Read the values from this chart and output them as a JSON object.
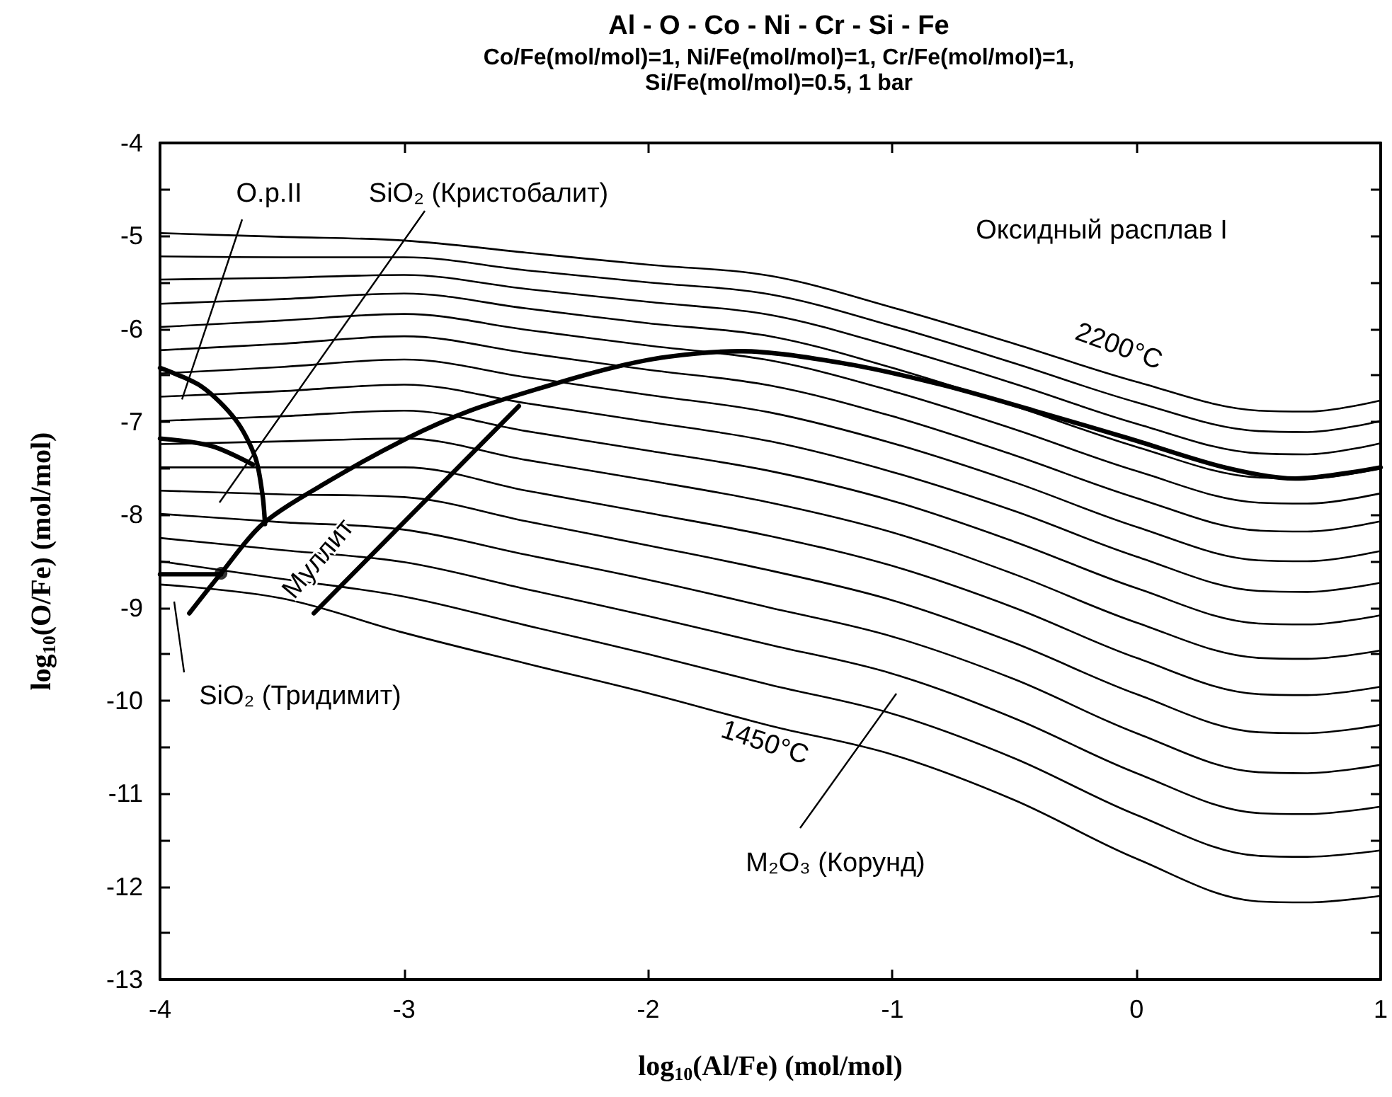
{
  "chart_data": {
    "type": "line",
    "title": "Al - O - Co - Ni - Cr - Si - Fe",
    "subtitle": "Co/Fe(mol/mol)=1, Ni/Fe(mol/mol)=1, Cr/Fe(mol/mol)=1,\nSi/Fe(mol/mol)=0.5, 1 bar",
    "xlabel": "log$_{10}$(Al/Fe) (mol/mol)",
    "ylabel": "log$_{10}$(O/Fe) (mol/mol)",
    "xlim": [
      -4,
      1
    ],
    "xticks": [
      -4,
      -3,
      -2,
      -1,
      0,
      1
    ],
    "ylim": [
      -13,
      -4
    ],
    "yticks": [
      -4,
      {
        "value": -4.5,
        "label": null
      },
      -5,
      {
        "value": -5.5,
        "label": null
      },
      -6,
      {
        "value": -6.5,
        "label": null
      },
      -7,
      {
        "value": -7.5,
        "label": null
      },
      -8,
      {
        "value": -8.5,
        "label": null
      },
      -9,
      {
        "value": -9.5,
        "label": null
      },
      -10,
      {
        "value": -10.5,
        "label": null
      },
      -11,
      {
        "value": -11.5,
        "label": null
      },
      -12,
      {
        "value": -12.5,
        "label": null
      },
      -13
    ],
    "grid": false,
    "marker": "none",
    "line_style": "solid",
    "x": [
      -4,
      -3.5,
      -3,
      -2.5,
      -2,
      -1.5,
      -1,
      -0.5,
      0,
      0.5,
      0.7,
      1
    ],
    "series": [
      {
        "color": "#000000",
        "values": [
          -4.97,
          -5.01,
          -5.05,
          -5.18,
          -5.31,
          -5.43,
          -5.77,
          -6.16,
          -6.57,
          -6.88,
          -6.89,
          -6.77
        ]
      },
      {
        "color": "#000000",
        "values": [
          -5.22,
          -5.23,
          -5.23,
          -5.37,
          -5.5,
          -5.63,
          -5.97,
          -6.37,
          -6.79,
          -7.1,
          -7.11,
          -6.99
        ]
      },
      {
        "color": "#000000",
        "values": [
          -5.47,
          -5.45,
          -5.42,
          -5.57,
          -5.71,
          -5.85,
          -6.19,
          -6.59,
          -7.02,
          -7.34,
          -7.35,
          -7.23
        ]
      },
      {
        "color": "#000000",
        "values": [
          -5.73,
          -5.68,
          -5.62,
          -5.78,
          -5.94,
          -6.08,
          -6.42,
          -6.83,
          -7.27,
          -7.6,
          -7.61,
          -7.5
        ]
      },
      {
        "color": "#000000",
        "values": [
          -5.98,
          -5.91,
          -5.84,
          -6.01,
          -6.18,
          -6.34,
          -6.67,
          -7.08,
          -7.53,
          -7.87,
          -7.88,
          -7.77
        ]
      },
      {
        "color": "#000000",
        "values": [
          -6.23,
          -6.16,
          -6.08,
          -6.26,
          -6.44,
          -6.61,
          -6.94,
          -7.36,
          -7.82,
          -8.17,
          -8.18,
          -8.07
        ]
      },
      {
        "color": "#000000",
        "values": [
          -6.48,
          -6.41,
          -6.33,
          -6.52,
          -6.71,
          -6.9,
          -7.23,
          -7.65,
          -8.13,
          -8.49,
          -8.5,
          -8.39
        ]
      },
      {
        "color": "#000000",
        "values": [
          -6.73,
          -6.67,
          -6.6,
          -6.8,
          -7.0,
          -7.21,
          -7.54,
          -7.96,
          -8.45,
          -8.82,
          -8.83,
          -8.73
        ]
      },
      {
        "color": "#000000",
        "values": [
          -6.99,
          -6.94,
          -6.88,
          -7.1,
          -7.31,
          -7.53,
          -7.85,
          -8.29,
          -8.79,
          -9.17,
          -9.18,
          -9.08
        ]
      },
      {
        "color": "#000000",
        "values": [
          -7.24,
          -7.21,
          -7.18,
          -7.41,
          -7.63,
          -7.87,
          -8.19,
          -8.64,
          -9.16,
          -9.54,
          -9.55,
          -9.46
        ]
      },
      {
        "color": "#000000",
        "values": [
          -7.49,
          -7.49,
          -7.49,
          -7.74,
          -7.98,
          -8.23,
          -8.55,
          -9.0,
          -9.54,
          -9.93,
          -9.94,
          -9.85
        ]
      },
      {
        "color": "#000000",
        "values": [
          -7.74,
          -7.78,
          -7.81,
          -8.07,
          -8.33,
          -8.6,
          -8.92,
          -9.38,
          -9.93,
          -10.34,
          -10.35,
          -10.26
        ]
      },
      {
        "color": "#000000",
        "values": [
          -7.99,
          -8.08,
          -8.16,
          -8.43,
          -8.7,
          -9.0,
          -9.31,
          -9.77,
          -10.35,
          -10.77,
          -10.78,
          -10.69
        ]
      },
      {
        "color": "#000000",
        "values": [
          -8.25,
          -8.38,
          -8.51,
          -8.8,
          -9.09,
          -9.4,
          -9.71,
          -10.19,
          -10.78,
          -11.21,
          -11.22,
          -11.14
        ]
      },
      {
        "color": "#000000",
        "values": [
          -8.5,
          -8.69,
          -8.88,
          -9.19,
          -9.5,
          -9.83,
          -10.14,
          -10.62,
          -11.23,
          -11.67,
          -11.68,
          -11.61
        ]
      },
      {
        "color": "#000000",
        "values": [
          -8.75,
          -8.9,
          -9.27,
          -9.6,
          -9.92,
          -10.27,
          -10.58,
          -11.07,
          -11.7,
          -12.16,
          -12.17,
          -12.1
        ]
      },
      {
        "type": "line",
        "color": "#000000",
        "x": [
          -3.88,
          -3.75,
          -3.58,
          -3.31,
          -2.99,
          -2.73,
          -2.42,
          -2.15,
          -1.92,
          -1.62,
          -1.18,
          -0.8,
          -0.42,
          -0.03,
          0.36,
          0.65,
          1
        ],
        "values": [
          -9.06,
          -8.63,
          -8.1,
          -7.64,
          -7.18,
          -6.88,
          -6.62,
          -6.42,
          -6.3,
          -6.24,
          -6.38,
          -6.6,
          -6.88,
          -7.18,
          -7.49,
          -7.61,
          -7.49
        ]
      },
      {
        "type": "line",
        "color": "#000000",
        "x": [
          -3.37,
          -2.53
        ],
        "values": [
          -9.06,
          -6.83
        ]
      },
      {
        "type": "line",
        "color": "#000000",
        "x": [
          -4,
          -3.83,
          -3.69,
          -3.61,
          -3.58,
          -3.57
        ],
        "values": [
          -6.42,
          -6.62,
          -6.98,
          -7.38,
          -7.79,
          -8.1
        ]
      },
      {
        "type": "line",
        "color": "#000000",
        "x": [
          -4,
          -3.79,
          -3.62
        ],
        "values": [
          -7.18,
          -7.26,
          -7.46
        ]
      },
      {
        "type": "line",
        "color": "#000000",
        "x": [
          -4,
          -3.75
        ],
        "values": [
          -8.64,
          -8.64
        ]
      },
      {
        "type": "scatter",
        "color": "#000000",
        "marker": "circle",
        "x": [
          -3.75
        ],
        "values": [
          -8.63
        ]
      }
    ],
    "annotations": [
      {
        "text": "O.p.II",
        "x": -3.91,
        "y": -6.76
      },
      "SiO₂ (Кристобалит)",
      "Муллит",
      "SiO₂ (Тридимит)",
      "Оксидный расплав I",
      "2200°C",
      "1450°C",
      "M₂O₃ (Корунд)"
    ]
  }
}
